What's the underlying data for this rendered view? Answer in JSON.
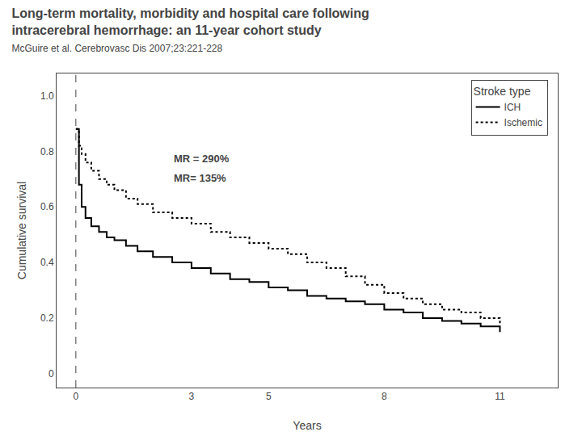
{
  "chart_data": {
    "type": "step",
    "title": [
      "Long-term mortality, morbidity and hospital care following",
      "intracerebral hemorrhage: an 11-year cohort study"
    ],
    "subtitle": "McGuire et al. Cerebrovasc Dis 2007;23:221-228",
    "xlabel": "Years",
    "ylabel": "Cumulative survival",
    "xlim": [
      -0.5,
      12.5
    ],
    "ylim": [
      -0.05,
      1.08
    ],
    "xticks": [
      0,
      3,
      5,
      8,
      11
    ],
    "yticks": [
      0,
      0.2,
      0.4,
      0.6,
      0.8,
      {
        "value": 1.0,
        "label": "1.0"
      }
    ],
    "grid": false,
    "legend": "upper right",
    "legend_title": "Stroke type",
    "vlines": [
      0
    ],
    "annotations": [
      {
        "text": "MR = 290%",
        "x": 2.5,
        "y": 0.8
      },
      {
        "text": "MR= 135%",
        "x": 2.5,
        "y": 0.73
      }
    ],
    "series": [
      {
        "name": "ICH",
        "color": "#000000",
        "line_style": "solid",
        "x": [
          0,
          0.08,
          0.15,
          0.25,
          0.4,
          0.6,
          0.8,
          1.0,
          1.3,
          1.6,
          2.0,
          2.5,
          3.0,
          3.5,
          4.0,
          4.5,
          5.0,
          5.5,
          6.0,
          6.5,
          7.0,
          7.5,
          8.0,
          8.5,
          9.0,
          9.5,
          10.0,
          10.5,
          11.0
        ],
        "values": [
          0.88,
          0.68,
          0.6,
          0.56,
          0.53,
          0.51,
          0.49,
          0.48,
          0.46,
          0.44,
          0.42,
          0.4,
          0.38,
          0.36,
          0.34,
          0.33,
          0.31,
          0.3,
          0.28,
          0.27,
          0.26,
          0.25,
          0.23,
          0.22,
          0.2,
          0.19,
          0.18,
          0.17,
          0.15
        ]
      },
      {
        "name": "Ischemic",
        "color": "#000000",
        "line_style": "dotted",
        "x": [
          0,
          0.08,
          0.15,
          0.25,
          0.4,
          0.6,
          0.8,
          1.0,
          1.3,
          1.6,
          2.0,
          2.5,
          3.0,
          3.5,
          4.0,
          4.5,
          5.0,
          5.5,
          6.0,
          6.5,
          7.0,
          7.5,
          8.0,
          8.5,
          9.0,
          9.5,
          10.0,
          10.5,
          11.0
        ],
        "values": [
          0.88,
          0.82,
          0.79,
          0.76,
          0.73,
          0.7,
          0.68,
          0.66,
          0.63,
          0.61,
          0.58,
          0.56,
          0.54,
          0.51,
          0.49,
          0.47,
          0.45,
          0.43,
          0.4,
          0.38,
          0.35,
          0.32,
          0.29,
          0.27,
          0.25,
          0.23,
          0.22,
          0.2,
          0.18
        ]
      }
    ]
  }
}
